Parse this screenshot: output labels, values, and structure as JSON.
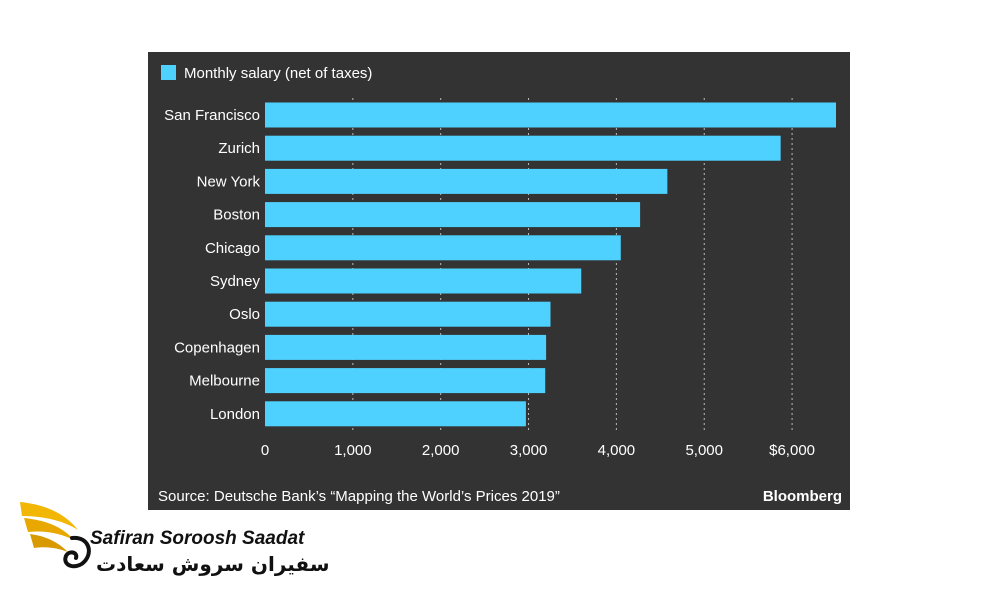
{
  "chart_data": {
    "type": "bar",
    "orientation": "horizontal",
    "legend": "Monthly salary (net of taxes)",
    "categories": [
      "San Francisco",
      "Zurich",
      "New York",
      "Boston",
      "Chicago",
      "Sydney",
      "Oslo",
      "Copenhagen",
      "Melbourne",
      "London"
    ],
    "values": [
      6500,
      5870,
      4580,
      4270,
      4050,
      3600,
      3250,
      3200,
      3190,
      2970
    ],
    "xlim": [
      0,
      6500
    ],
    "xticks": [
      0,
      1000,
      2000,
      3000,
      4000,
      5000,
      6000
    ],
    "xtick_labels": [
      "0",
      "1,000",
      "2,000",
      "3,000",
      "4,000",
      "5,000",
      "$6,000"
    ],
    "grid": "vertical dotted",
    "legend_position": "top-left",
    "source": "Source: Deutsche Bank’s “Mapping the World’s Prices 2019”",
    "brand": "Bloomberg",
    "colors": {
      "bar": "#4fd1ff",
      "background": "#333333",
      "text": "#ffffff",
      "grid": "#bbbbbb"
    }
  },
  "watermark": {
    "name_en": "Safiran Soroosh Saadat",
    "name_fa": "سفیران سروش سعادت",
    "icon": "golden-wing-logo-icon"
  }
}
